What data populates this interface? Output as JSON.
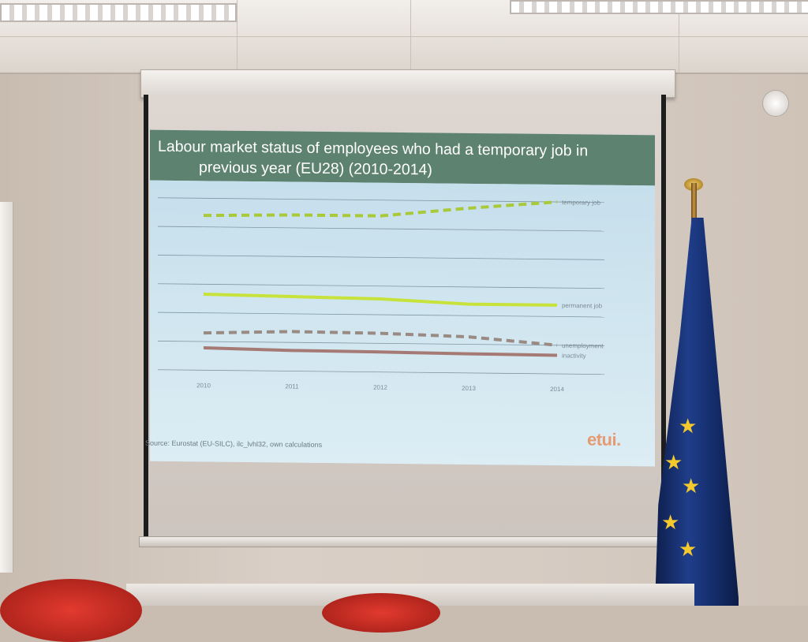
{
  "slide": {
    "title_line1": "Labour market status of employees who had a temporary job in",
    "title_line2": "previous year (EU28) (2010-2014)",
    "source": "Source:  Eurostat (EU-SILC), ilc_lvhl32, own calculations",
    "logo": "etui."
  },
  "chart_data": {
    "type": "line",
    "title": "Labour market status of employees who had a temporary job in previous year (EU28) (2010-2014)",
    "x": [
      "2010",
      "2011",
      "2012",
      "2013",
      "2014"
    ],
    "xlabel": "",
    "ylabel": "",
    "ylim": [
      0,
      60
    ],
    "grid": true,
    "legend": "inline-right",
    "series": [
      {
        "name": "temporary job",
        "values": [
          54,
          54.5,
          54.5,
          57.5,
          60
        ],
        "color": "#a9c93a",
        "style": "dashed"
      },
      {
        "name": "permanent job",
        "values": [
          26.5,
          26,
          25.5,
          24,
          24
        ],
        "color": "#c7e23a",
        "style": "solid"
      },
      {
        "name": "unemployment",
        "values": [
          13,
          13.8,
          13.5,
          12.6,
          10
        ],
        "color": "#9a8a84",
        "style": "dashed"
      },
      {
        "name": "inactivity",
        "values": [
          7.8,
          7.2,
          7,
          6.7,
          6.5
        ],
        "color": "#a67a74",
        "style": "solid"
      }
    ]
  }
}
